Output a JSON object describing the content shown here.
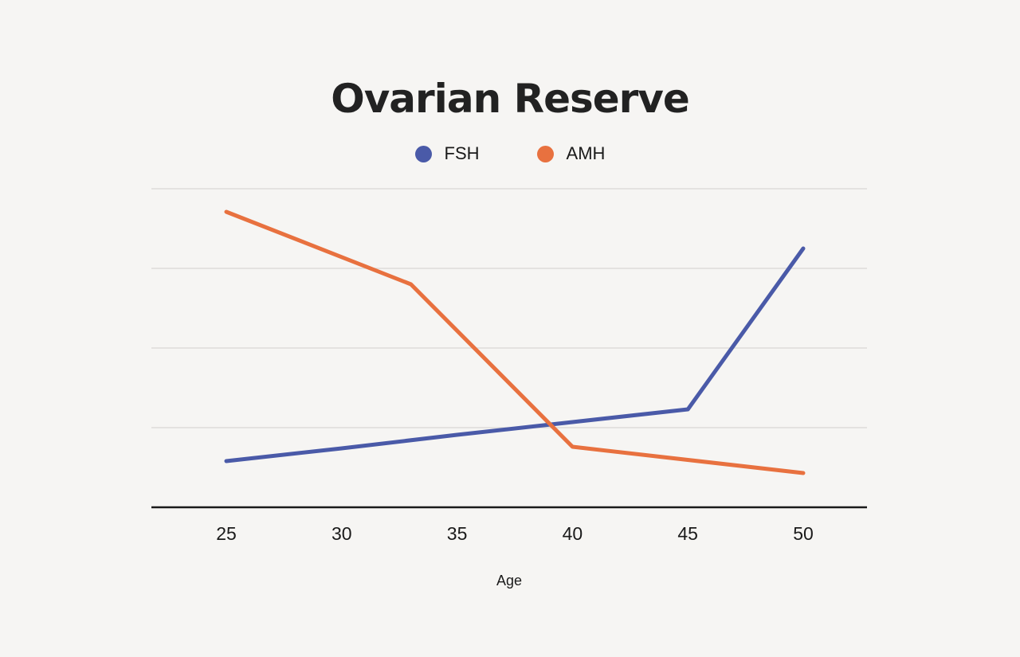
{
  "page": {
    "background_color": "#F6F5F3"
  },
  "chart_data": {
    "type": "line",
    "title": "Ovarian Reserve",
    "xlabel": "Age",
    "ylabel": "",
    "x_ticks": [
      25,
      30,
      35,
      40,
      45,
      50
    ],
    "xlim": [
      25,
      50
    ],
    "ylim": [
      0,
      4.3
    ],
    "y_gridlines": [
      1,
      2,
      3,
      4
    ],
    "y_tick_labels_visible": false,
    "y_unit": "relative (one gridline spacing = 1)",
    "grid": "horizontal-only",
    "legend_position": "top-center",
    "axis_color": "#1A1A1A",
    "gridline_color": "#DDDCDA",
    "line_width": 5,
    "series": [
      {
        "name": "FSH",
        "color": "#4A5AA8",
        "points": [
          {
            "x": 25,
            "y": 0.58
          },
          {
            "x": 30,
            "y": 0.74
          },
          {
            "x": 35,
            "y": 0.91
          },
          {
            "x": 40,
            "y": 1.07
          },
          {
            "x": 45,
            "y": 1.23
          },
          {
            "x": 50,
            "y": 3.25
          }
        ]
      },
      {
        "name": "AMH",
        "color": "#E8713F",
        "points": [
          {
            "x": 25,
            "y": 3.71
          },
          {
            "x": 33,
            "y": 2.8
          },
          {
            "x": 40,
            "y": 0.76
          },
          {
            "x": 50,
            "y": 0.43
          }
        ]
      }
    ]
  }
}
